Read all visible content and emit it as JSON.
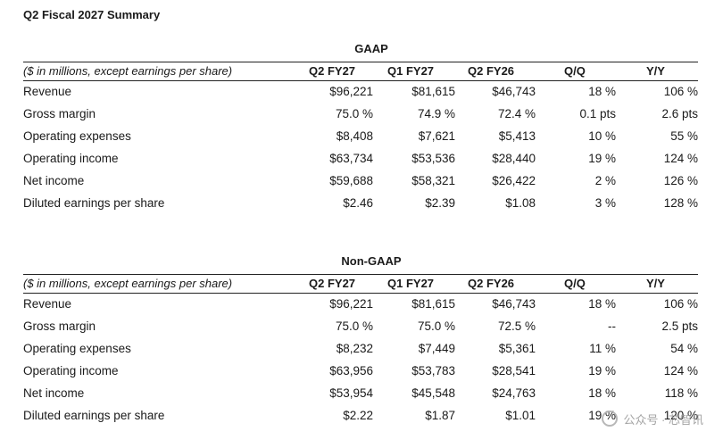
{
  "title": "Q2 Fiscal 2027 Summary",
  "sections": [
    {
      "name": "GAAP",
      "header": [
        "($ in millions, except earnings per share)",
        "Q2 FY27",
        "Q1 FY27",
        "Q2 FY26",
        "Q/Q",
        "Y/Y"
      ],
      "rows": [
        [
          "Revenue",
          "$96,221",
          "$81,615",
          "$46,743",
          "18 %",
          "106 %"
        ],
        [
          "Gross margin",
          "75.0 %",
          "74.9 %",
          "72.4 %",
          "0.1 pts",
          "2.6 pts"
        ],
        [
          "Operating expenses",
          "$8,408",
          "$7,621",
          "$5,413",
          "10 %",
          "55 %"
        ],
        [
          "Operating income",
          "$63,734",
          "$53,536",
          "$28,440",
          "19 %",
          "124 %"
        ],
        [
          "Net income",
          "$59,688",
          "$58,321",
          "$26,422",
          "2 %",
          "126 %"
        ],
        [
          "Diluted earnings per share",
          "$2.46",
          "$2.39",
          "$1.08",
          "3 %",
          "128 %"
        ]
      ]
    },
    {
      "name": "Non-GAAP",
      "header": [
        "($ in millions, except earnings per share)",
        "Q2 FY27",
        "Q1 FY27",
        "Q2 FY26",
        "Q/Q",
        "Y/Y"
      ],
      "rows": [
        [
          "Revenue",
          "$96,221",
          "$81,615",
          "$46,743",
          "18 %",
          "106 %"
        ],
        [
          "Gross margin",
          "75.0 %",
          "75.0 %",
          "72.5 %",
          "--",
          "2.5 pts"
        ],
        [
          "Operating expenses",
          "$8,232",
          "$7,449",
          "$5,361",
          "11 %",
          "54 %"
        ],
        [
          "Operating income",
          "$63,956",
          "$53,783",
          "$28,541",
          "19 %",
          "124 %"
        ],
        [
          "Net income",
          "$53,954",
          "$45,548",
          "$24,763",
          "18 %",
          "118 %"
        ],
        [
          "Diluted earnings per share",
          "$2.22",
          "$1.87",
          "$1.01",
          "19 %",
          "120 %"
        ]
      ]
    }
  ],
  "watermark": "公众号 · 芯智讯"
}
